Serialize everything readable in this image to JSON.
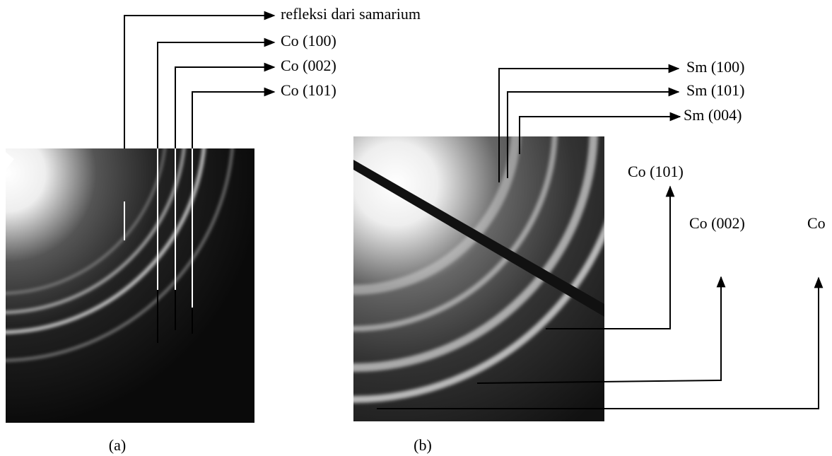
{
  "panel_a": {
    "caption": "(a)",
    "labels": [
      "refleksi dari samarium",
      "Co (100)",
      "Co (002)",
      "Co (101)"
    ]
  },
  "panel_b": {
    "caption": "(b)",
    "top_labels": [
      "Sm (100)",
      "Sm (101)",
      "Sm (004)"
    ],
    "side_labels": [
      "Co (101)",
      "Co (002)",
      "Co"
    ]
  }
}
